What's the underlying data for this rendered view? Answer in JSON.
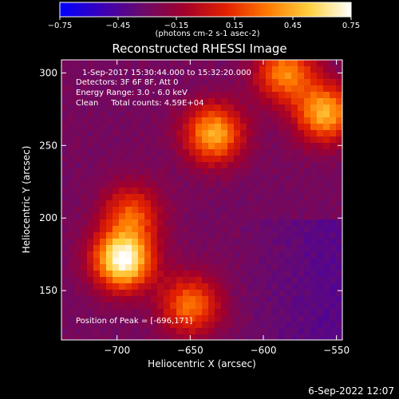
{
  "colorbar": {
    "ticks": [
      "-0.75",
      "-0.45",
      "-0.15",
      "0.15",
      "0.45",
      "0.75"
    ],
    "min": -0.75,
    "max": 0.75,
    "unit_label": "(photons cm-2 s-1 asec-2)",
    "colors": [
      "#0000ff",
      "#3b00b8",
      "#6a0a6a",
      "#a3002a",
      "#e22000",
      "#ff7a00",
      "#ffd040",
      "#ffffff"
    ]
  },
  "title": "Reconstructed RHESSI Image",
  "info": {
    "time_range": "1-Sep-2017 15:30:44.000 to 15:32:20.000",
    "detectors": "Detectors: 3F 6F 8F, Att 0",
    "energy": "Energy Range: 3.0 - 6.0 keV",
    "method": "Clean     Total counts: 4.59E+04"
  },
  "peak_label": "Position of Peak = [-696,171]",
  "footer_timestamp": "6-Sep-2022 12:07",
  "chart_data": {
    "type": "heatmap",
    "title": "Reconstructed RHESSI Image",
    "xlabel": "Heliocentric X (arcsec)",
    "ylabel": "Heliocentric Y (arcsec)",
    "xlim": [
      -738,
      -546
    ],
    "ylim": [
      116,
      309
    ],
    "x_ticks": [
      -700,
      -650,
      -600,
      -550
    ],
    "y_ticks": [
      150,
      200,
      250,
      300
    ],
    "x_tick_labels": [
      "−700",
      "−650",
      "−600",
      "−550"
    ],
    "y_tick_labels": [
      "150",
      "200",
      "250",
      "300"
    ],
    "value_range": [
      -0.75,
      0.75
    ],
    "peak": [
      -696,
      171
    ],
    "sources": [
      {
        "x": -696,
        "y": 171,
        "value": 0.75
      },
      {
        "x": -634,
        "y": 258,
        "value": 0.45
      },
      {
        "x": -558,
        "y": 272,
        "value": 0.45
      },
      {
        "x": -585,
        "y": 300,
        "value": 0.35
      },
      {
        "x": -650,
        "y": 140,
        "value": 0.3
      },
      {
        "x": -690,
        "y": 203,
        "value": 0.2
      }
    ]
  }
}
